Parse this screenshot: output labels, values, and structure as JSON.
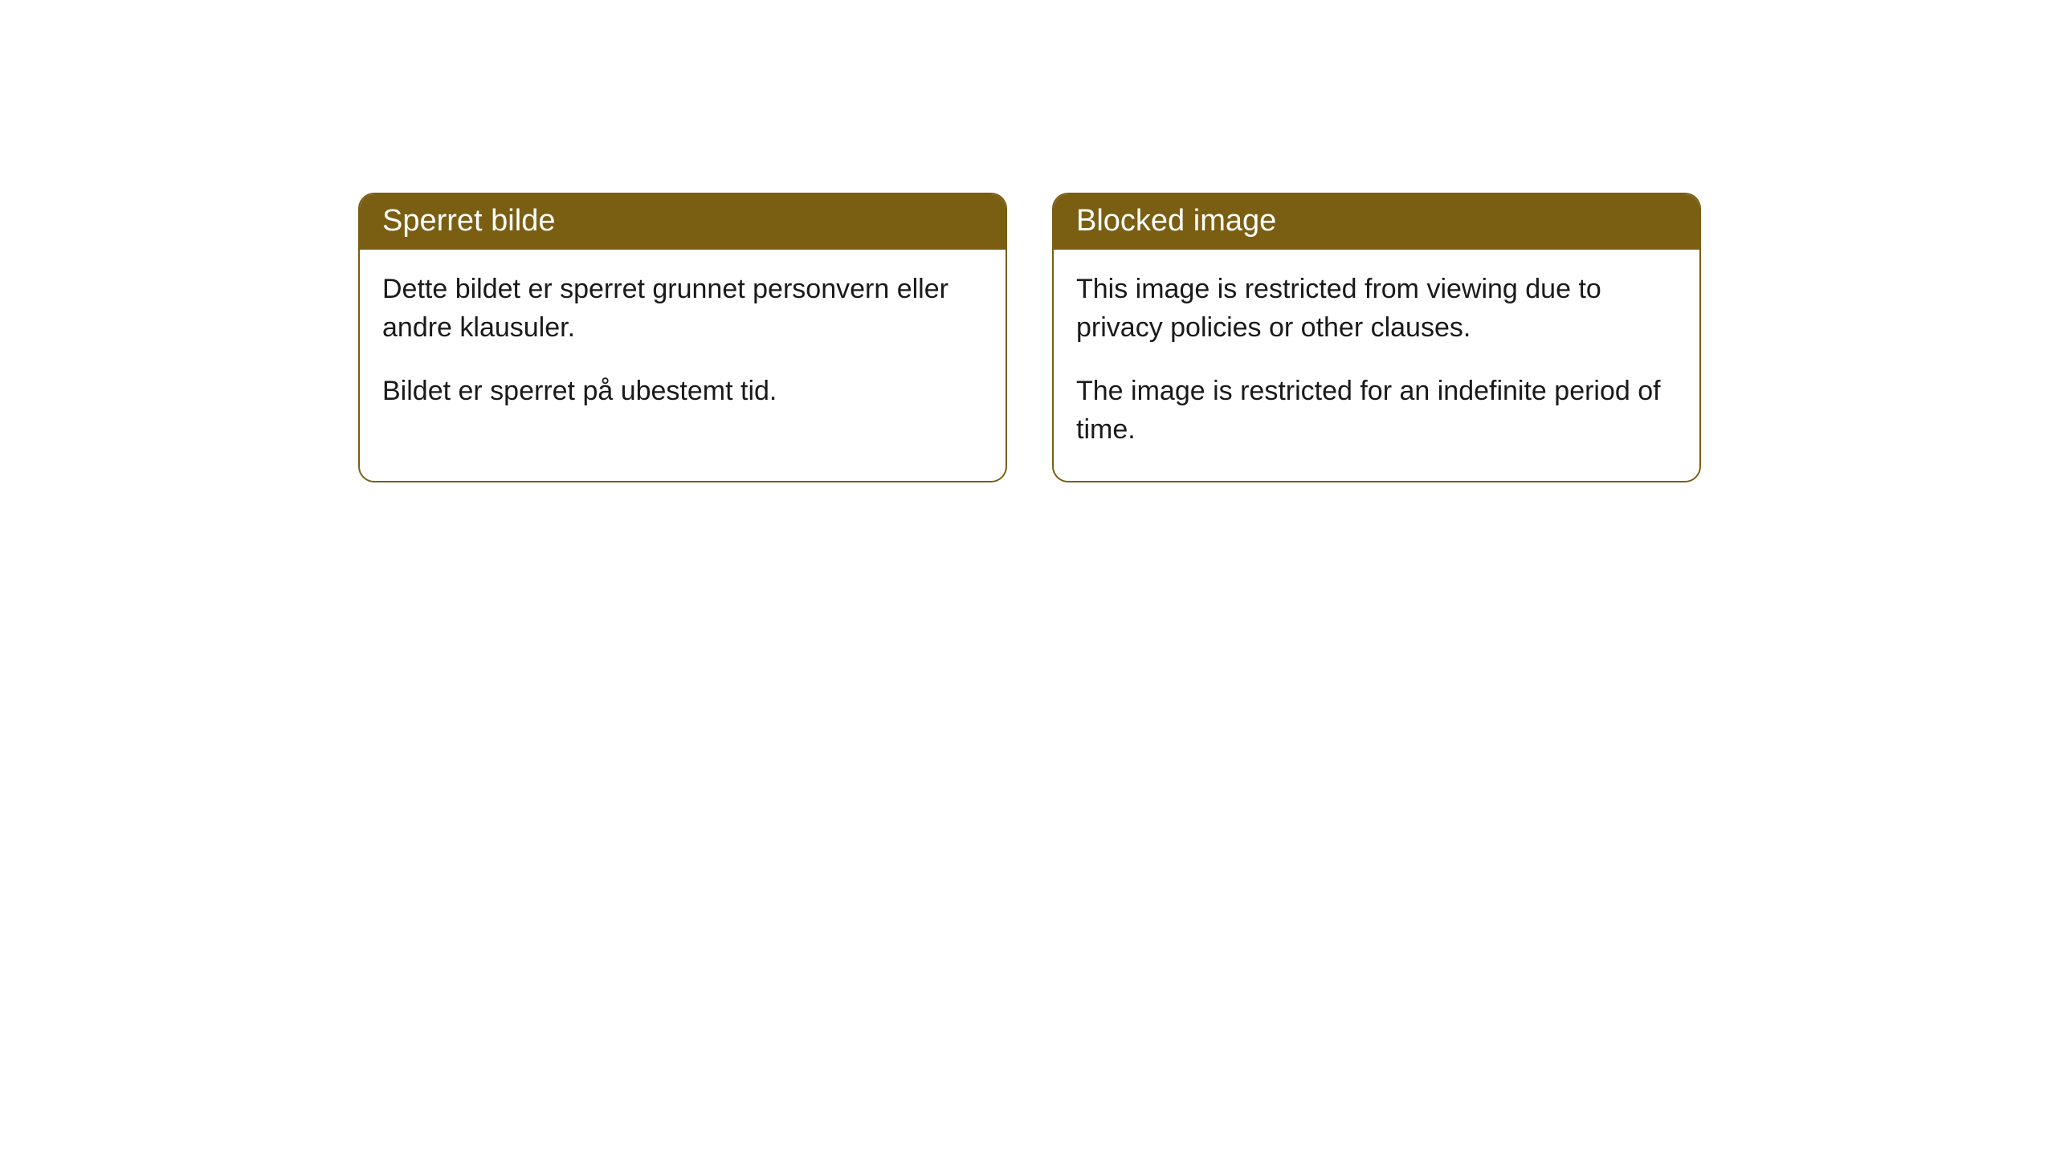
{
  "theme": {
    "header_bg": "#7a5e12",
    "header_text": "#ffffff",
    "border_color": "#7a5e12",
    "body_text": "#1a1a1a",
    "page_bg": "#ffffff",
    "border_radius": 20,
    "header_fontsize": 38,
    "body_fontsize": 34
  },
  "cards": {
    "left": {
      "title": "Sperret bilde",
      "p1": "Dette bildet er sperret grunnet personvern eller andre klausuler.",
      "p2": "Bildet er sperret på ubestemt tid."
    },
    "right": {
      "title": "Blocked image",
      "p1": "This image is restricted from viewing due to privacy policies or other clauses.",
      "p2": "The image is restricted for an indefinite period of time."
    }
  }
}
